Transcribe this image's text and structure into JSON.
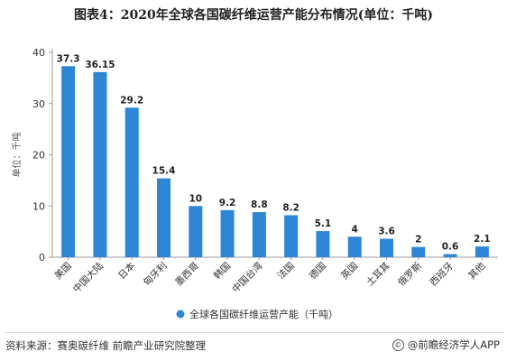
{
  "title": "图表4：2020年全球各国碳纤维运营产能分布情况(单位：千吨)",
  "footer": {
    "source": "资料来源：赛奥碳纤维 前瞻产业研究院整理",
    "brand": "@前瞻经济学人APP",
    "copyright_symbol": "©"
  },
  "colors": {
    "bar": "#2e86d6",
    "axis": "#999999",
    "grid": "#e6e6e6"
  },
  "chart_data": {
    "type": "bar",
    "title": "图表4：2020年全球各国碳纤维运营产能分布情况(单位：千吨)",
    "ylabel": "单位：千吨",
    "xlabel": "",
    "ylim": [
      0,
      40
    ],
    "yticks": [
      0,
      10,
      20,
      30,
      40
    ],
    "grid": false,
    "legend": "bottom-center",
    "categories": [
      "美国",
      "中国大陆",
      "日本",
      "匈牙利",
      "墨西哥",
      "韩国",
      "中国台湾",
      "法国",
      "德国",
      "英国",
      "土耳其",
      "俄罗斯",
      "西班牙",
      "其他"
    ],
    "series": [
      {
        "name": "全球各国碳纤维运营产能（千吨）",
        "values": [
          37.3,
          36.15,
          29.2,
          15.4,
          10,
          9.2,
          8.8,
          8.2,
          5.1,
          4,
          3.6,
          2,
          0.6,
          2.1
        ],
        "labels": [
          "37.3",
          "36.15",
          "29.2",
          "15.4",
          "10",
          "9.2",
          "8.8",
          "8.2",
          "5.1",
          "4",
          "3.6",
          "2",
          "0.6",
          "2.1"
        ]
      }
    ]
  }
}
